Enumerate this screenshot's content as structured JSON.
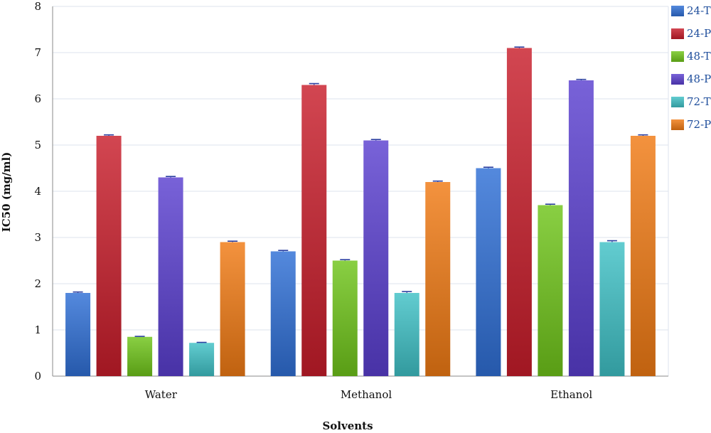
{
  "chart_data": {
    "type": "bar",
    "title": "",
    "xlabel": "Solvents",
    "ylabel": "IC50 (mg/ml)",
    "ylim": [
      0,
      8
    ],
    "yticks": [
      "0",
      "1",
      "2",
      "3",
      "4",
      "5",
      "6",
      "7",
      "8"
    ],
    "grid": true,
    "legend_position": "right",
    "categories": [
      "Water",
      "Methanol",
      "Ethanol"
    ],
    "series": [
      {
        "name": "24-T",
        "color": "#2f6fd6",
        "values": [
          1.8,
          2.7,
          4.5
        ],
        "error": [
          0.02,
          0.02,
          0.02
        ]
      },
      {
        "name": "24-P",
        "color": "#c81d2b",
        "values": [
          5.2,
          6.3,
          7.1
        ],
        "error": [
          0.02,
          0.03,
          0.02
        ]
      },
      {
        "name": "48-T",
        "color": "#6fc41a",
        "values": [
          0.85,
          2.5,
          3.7
        ],
        "error": [
          0.01,
          0.02,
          0.02
        ]
      },
      {
        "name": "48-P",
        "color": "#5a3fd0",
        "values": [
          4.3,
          5.1,
          6.4
        ],
        "error": [
          0.02,
          0.02,
          0.02
        ]
      },
      {
        "name": "72-T",
        "color": "#3fc1c6",
        "values": [
          0.72,
          1.8,
          2.9
        ],
        "error": [
          0.01,
          0.03,
          0.03
        ]
      },
      {
        "name": "72-P",
        "color": "#f07a14",
        "values": [
          2.9,
          4.2,
          5.2
        ],
        "error": [
          0.02,
          0.02,
          0.02
        ]
      }
    ]
  }
}
